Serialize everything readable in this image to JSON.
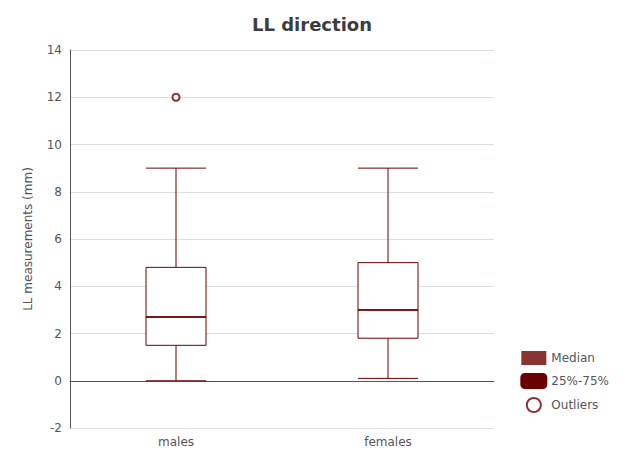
{
  "chart_data": {
    "type": "boxplot",
    "title": "LL direction",
    "ylabel": "LL measurements (mm)",
    "categories": [
      "males",
      "females"
    ],
    "boxes": [
      {
        "median": 2.7,
        "q1": 1.5,
        "q3": 4.8,
        "whisker_low": 0.0,
        "whisker_high": 9.0,
        "outliers": [
          12.0
        ]
      },
      {
        "median": 3.0,
        "q1": 1.8,
        "q3": 5.0,
        "whisker_low": 0.1,
        "whisker_high": 9.0,
        "outliers": []
      }
    ],
    "legend_entries": [
      "Median",
      "25%-75%",
      "Outliers"
    ],
    "color": "#6b0000",
    "ylim": [
      -2,
      14
    ],
    "yticks": [
      -2,
      0,
      2,
      4,
      6,
      8,
      10,
      12,
      14
    ],
    "grid": true,
    "legend": "lower right"
  }
}
